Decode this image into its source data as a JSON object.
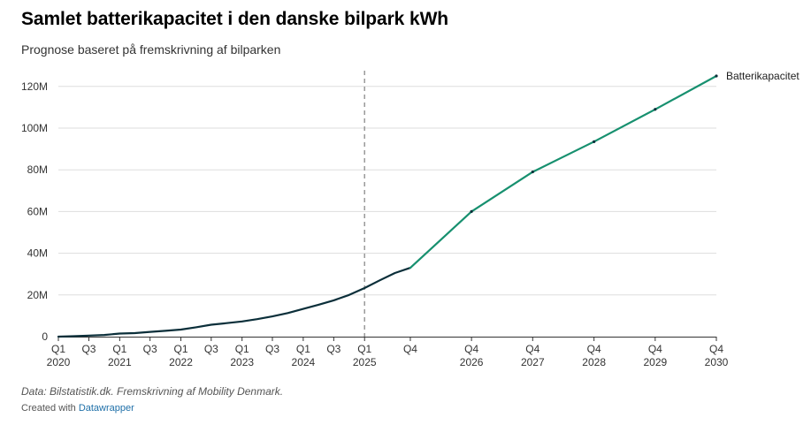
{
  "title": "Samlet batterikapacitet i den danske bilpark kWh",
  "subtitle": "Prognose baseret på fremskrivning af bilparken",
  "notes": "Data: Bilstatistik.dk. Fremskrivning af Mobility Denmark.",
  "credit": {
    "prefix": "Created with ",
    "link": "Datawrapper"
  },
  "colors": {
    "historical": "#0b2f3a",
    "forecast": "#17906f",
    "divider": "#999999",
    "grid": "#dddddd",
    "axis": "#333333"
  },
  "chart_data": {
    "type": "line",
    "title": "Samlet batterikapacitet i den danske bilpark kWh",
    "subtitle": "Prognose baseret på fremskrivning af bilparken",
    "ylim": [
      0,
      125000000
    ],
    "y_ticks": [
      {
        "value": 0,
        "label": "0"
      },
      {
        "value": 20000000,
        "label": "20M"
      },
      {
        "value": 40000000,
        "label": "40M"
      },
      {
        "value": 60000000,
        "label": "60M"
      },
      {
        "value": 80000000,
        "label": "80M"
      },
      {
        "value": 100000000,
        "label": "100M"
      },
      {
        "value": 120000000,
        "label": "120M"
      }
    ],
    "x_ticks": [
      {
        "x": "2020-01-01",
        "q": "Q1",
        "year": "2020"
      },
      {
        "x": "2020-07-01",
        "q": "Q3",
        "year": ""
      },
      {
        "x": "2021-01-01",
        "q": "Q1",
        "year": "2021"
      },
      {
        "x": "2021-07-01",
        "q": "Q3",
        "year": ""
      },
      {
        "x": "2022-01-01",
        "q": "Q1",
        "year": "2022"
      },
      {
        "x": "2022-07-01",
        "q": "Q3",
        "year": ""
      },
      {
        "x": "2023-01-01",
        "q": "Q1",
        "year": "2023"
      },
      {
        "x": "2023-07-01",
        "q": "Q3",
        "year": ""
      },
      {
        "x": "2024-01-01",
        "q": "Q1",
        "year": "2024"
      },
      {
        "x": "2024-07-01",
        "q": "Q3",
        "year": ""
      },
      {
        "x": "2025-01-01",
        "q": "Q1",
        "year": "2025"
      },
      {
        "x": "2025-10-01",
        "q": "Q4",
        "year": ""
      },
      {
        "x": "2026-10-01",
        "q": "Q4",
        "year": "2026"
      },
      {
        "x": "2027-10-01",
        "q": "Q4",
        "year": "2027"
      },
      {
        "x": "2028-10-01",
        "q": "Q4",
        "year": "2028"
      },
      {
        "x": "2029-10-01",
        "q": "Q4",
        "year": "2029"
      },
      {
        "x": "2030-10-01",
        "q": "Q4",
        "year": "2030"
      }
    ],
    "divider_x": "2025-01-01",
    "grid": "horizontal",
    "series": [
      {
        "name": "Batterikapacitet",
        "segments": [
          {
            "kind": "historical",
            "points": [
              [
                "2020-01-01",
                0
              ],
              [
                "2020-04-01",
                200000
              ],
              [
                "2020-07-01",
                500000
              ],
              [
                "2020-10-01",
                800000
              ],
              [
                "2021-01-01",
                1500000
              ],
              [
                "2021-04-01",
                1700000
              ],
              [
                "2021-07-01",
                2300000
              ],
              [
                "2021-10-01",
                2800000
              ],
              [
                "2022-01-01",
                3400000
              ],
              [
                "2022-04-01",
                4500000
              ],
              [
                "2022-07-01",
                5700000
              ],
              [
                "2022-10-01",
                6500000
              ],
              [
                "2023-01-01",
                7300000
              ],
              [
                "2023-04-01",
                8400000
              ],
              [
                "2023-07-01",
                9700000
              ],
              [
                "2023-10-01",
                11300000
              ],
              [
                "2024-01-01",
                13300000
              ],
              [
                "2024-04-01",
                15300000
              ],
              [
                "2024-07-01",
                17400000
              ],
              [
                "2024-10-01",
                20000000
              ],
              [
                "2025-01-01",
                23300000
              ],
              [
                "2025-04-01",
                27000000
              ],
              [
                "2025-07-01",
                30500000
              ],
              [
                "2025-10-01",
                33000000
              ]
            ]
          },
          {
            "kind": "forecast",
            "points": [
              [
                "2025-10-01",
                33000000
              ],
              [
                "2026-10-01",
                60000000
              ],
              [
                "2027-10-01",
                79000000
              ],
              [
                "2028-10-01",
                93500000
              ],
              [
                "2029-10-01",
                109000000
              ],
              [
                "2030-10-01",
                125000000
              ]
            ]
          }
        ]
      }
    ]
  }
}
